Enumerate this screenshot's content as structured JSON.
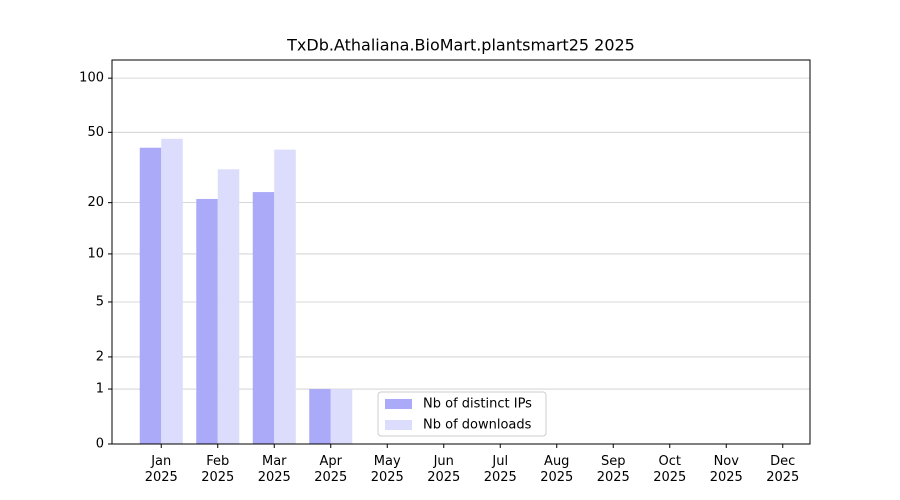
{
  "chart_data": {
    "type": "bar",
    "title": "TxDb.Athaliana.BioMart.plantsmart25 2025",
    "categories": [
      "Jan 2025",
      "Feb 2025",
      "Mar 2025",
      "Apr 2025",
      "May 2025",
      "Jun 2025",
      "Jul 2025",
      "Aug 2025",
      "Sep 2025",
      "Oct 2025",
      "Nov 2025",
      "Dec 2025"
    ],
    "series": [
      {
        "name": "Nb of distinct IPs",
        "color": "#aaaaf8",
        "values": [
          41,
          21,
          23,
          1,
          0,
          0,
          0,
          0,
          0,
          0,
          0,
          0
        ]
      },
      {
        "name": "Nb of downloads",
        "color": "#dcdcfc",
        "values": [
          46,
          31,
          40,
          1,
          0,
          0,
          0,
          0,
          0,
          0,
          0,
          0
        ]
      }
    ],
    "yscale": "log1p",
    "ylim": [
      0,
      126
    ],
    "yticks": [
      0,
      1,
      2,
      5,
      10,
      20,
      50,
      100
    ],
    "grid": true,
    "legend": "lower center"
  }
}
